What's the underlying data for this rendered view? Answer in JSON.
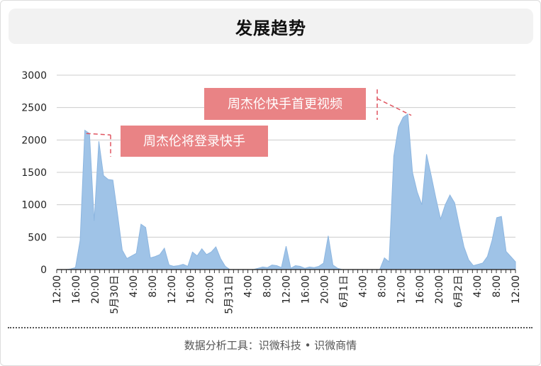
{
  "title": "发展趋势",
  "footer": "数据分析工具：识微科技 • 识微商情",
  "colors": {
    "area": "#9fc3e7",
    "gridline": "#cccccc",
    "annotation_box": "#e98385",
    "annotation_line": "#e05560"
  },
  "chart_data": {
    "type": "area",
    "ylim": [
      0,
      3000
    ],
    "yticks": [
      0,
      500,
      1000,
      1500,
      2000,
      2500,
      3000
    ],
    "x_tick_labels": [
      "12:00",
      "16:00",
      "20:00",
      "5月30日",
      "4:00",
      "8:00",
      "12:00",
      "16:00",
      "20:00",
      "5月31日",
      "4:00",
      "8:00",
      "12:00",
      "16:00",
      "20:00",
      "6月1日",
      "4:00",
      "8:00",
      "12:00",
      "16:00",
      "20:00",
      "6月2日",
      "4:00",
      "8:00",
      "12:00"
    ],
    "x_unit": "hour_index_from_5月29日_12:00",
    "values": [
      0,
      0,
      0,
      10,
      30,
      450,
      2150,
      2100,
      750,
      1980,
      1450,
      1390,
      1380,
      850,
      300,
      170,
      210,
      250,
      700,
      650,
      180,
      200,
      230,
      330,
      70,
      50,
      60,
      80,
      50,
      270,
      210,
      320,
      230,
      270,
      350,
      170,
      50,
      0,
      0,
      0,
      0,
      0,
      0,
      20,
      40,
      30,
      70,
      60,
      30,
      360,
      20,
      60,
      50,
      20,
      40,
      30,
      50,
      100,
      520,
      70,
      20,
      0,
      0,
      0,
      0,
      0,
      0,
      0,
      0,
      0,
      180,
      120,
      1750,
      2200,
      2350,
      2400,
      1500,
      1200,
      1000,
      1780,
      1450,
      1100,
      780,
      1000,
      1150,
      1030,
      680,
      350,
      150,
      60,
      80,
      100,
      200,
      450,
      800,
      820,
      280,
      200,
      120
    ],
    "annotations": [
      {
        "text": "周杰伦将登录快手",
        "x": 6.2,
        "y": 2100
      },
      {
        "text": "周杰伦快手首更视频",
        "x": 74.2,
        "y": 2380
      }
    ]
  }
}
